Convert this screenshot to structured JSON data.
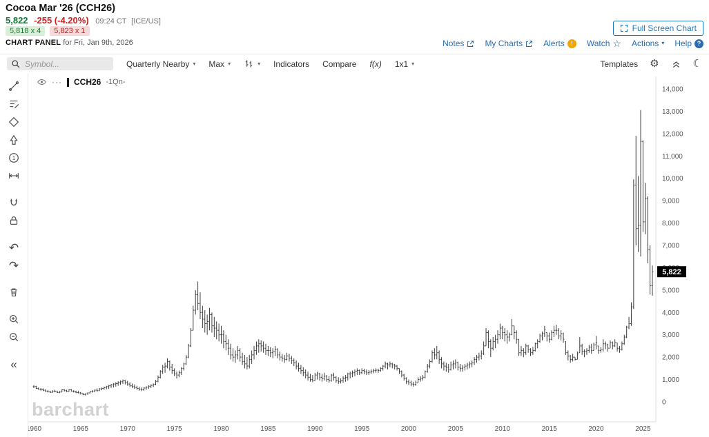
{
  "header": {
    "title": "Cocoa Mar '26 (CCH26)",
    "last_price": "5,822",
    "change": "-255 (-4.20%)",
    "quote_time": "09:24 CT",
    "exchange": "[ICE/US]",
    "bid": "5,818 x 4",
    "ask": "5,823 x 1",
    "panel_label": "CHART PANEL",
    "panel_date": "for Fri, Jan 9th, 2026",
    "fullscreen_label": "Full Screen Chart",
    "links": {
      "notes": "Notes",
      "my_charts": "My Charts",
      "alerts": "Alerts",
      "watch": "Watch",
      "actions": "Actions",
      "help": "Help"
    }
  },
  "toolbar": {
    "symbol_placeholder": "Symbol...",
    "frequency_label": "Quarterly Nearby",
    "range_label": "Max",
    "indicators_label": "Indicators",
    "compare_label": "Compare",
    "fx_label": "f(x)",
    "layout_label": "1x1",
    "templates_label": "Templates"
  },
  "legend": {
    "symbol": "CCH26",
    "frequency": "-1Qn-"
  },
  "watermark": "barchart",
  "icons": {
    "gear": "⚙",
    "moon": "☾",
    "star": "☆",
    "undo": "↶",
    "redo": "↷",
    "collapse": "«",
    "dots": "···",
    "caret_down": "▾",
    "alert_mark": "!",
    "help_mark": "?"
  },
  "colors": {
    "link_blue": "#2a6bb3",
    "button_blue": "#1f7ac2",
    "price_green": "#0b7d34",
    "change_red": "#cc1f1f",
    "bid_bg": "#d9efd9",
    "ask_bg": "#f8d9d9",
    "bar_color": "#3c3c3c",
    "axis_text": "#555555",
    "price_tag_bg": "#000000",
    "price_tag_text": "#ffffff",
    "alert_orange": "#f0a500",
    "watermark_gray": "#d2d2d2"
  },
  "chart_data": {
    "type": "ohlc-bar",
    "title": "Cocoa Mar '26 (CCH26) - Quarterly Nearby - Max range",
    "symbol": "CCH26",
    "frequency": "Quarterly Nearby (1Qn)",
    "range": "Max",
    "start_year": 1960,
    "bars_per_year": 4,
    "ylim": [
      0,
      14000
    ],
    "y_tick_step": 1000,
    "y_ticks": [
      0,
      1000,
      2000,
      3000,
      4000,
      5000,
      6000,
      7000,
      8000,
      9000,
      10000,
      11000,
      12000,
      13000,
      14000
    ],
    "x_tick_years": [
      1960,
      1965,
      1970,
      1975,
      1980,
      1985,
      1990,
      1995,
      2000,
      2005,
      2010,
      2015,
      2020,
      2025
    ],
    "grid": false,
    "legend_position": "top-left",
    "last_price": 5822,
    "last_price_label": "5,822",
    "bars_hlc": [
      [
        750,
        620,
        680
      ],
      [
        720,
        580,
        600
      ],
      [
        640,
        540,
        560
      ],
      [
        620,
        500,
        540
      ],
      [
        600,
        480,
        520
      ],
      [
        560,
        440,
        470
      ],
      [
        520,
        420,
        450
      ],
      [
        500,
        400,
        430
      ],
      [
        520,
        410,
        470
      ],
      [
        540,
        430,
        460
      ],
      [
        500,
        400,
        420
      ],
      [
        480,
        390,
        440
      ],
      [
        560,
        430,
        540
      ],
      [
        580,
        460,
        500
      ],
      [
        540,
        440,
        470
      ],
      [
        560,
        450,
        540
      ],
      [
        580,
        460,
        480
      ],
      [
        520,
        420,
        460
      ],
      [
        500,
        390,
        420
      ],
      [
        480,
        380,
        400
      ],
      [
        440,
        330,
        360
      ],
      [
        400,
        300,
        330
      ],
      [
        380,
        290,
        350
      ],
      [
        420,
        320,
        400
      ],
      [
        480,
        380,
        450
      ],
      [
        520,
        410,
        480
      ],
      [
        560,
        440,
        520
      ],
      [
        600,
        460,
        500
      ],
      [
        620,
        480,
        580
      ],
      [
        640,
        520,
        600
      ],
      [
        680,
        540,
        640
      ],
      [
        720,
        560,
        680
      ],
      [
        760,
        580,
        720
      ],
      [
        800,
        620,
        760
      ],
      [
        840,
        640,
        800
      ],
      [
        880,
        680,
        820
      ],
      [
        920,
        720,
        860
      ],
      [
        960,
        760,
        900
      ],
      [
        1000,
        800,
        940
      ],
      [
        980,
        780,
        850
      ],
      [
        940,
        720,
        800
      ],
      [
        880,
        660,
        720
      ],
      [
        820,
        620,
        680
      ],
      [
        780,
        580,
        640
      ],
      [
        720,
        540,
        600
      ],
      [
        680,
        500,
        560
      ],
      [
        640,
        480,
        540
      ],
      [
        660,
        500,
        620
      ],
      [
        700,
        540,
        660
      ],
      [
        740,
        580,
        700
      ],
      [
        780,
        620,
        740
      ],
      [
        820,
        660,
        780
      ],
      [
        980,
        740,
        920
      ],
      [
        1180,
        880,
        1100
      ],
      [
        1420,
        1050,
        1350
      ],
      [
        1650,
        1250,
        1550
      ],
      [
        1750,
        1300,
        1600
      ],
      [
        1950,
        1500,
        1800
      ],
      [
        1850,
        1400,
        1550
      ],
      [
        1700,
        1250,
        1400
      ],
      [
        1500,
        1150,
        1250
      ],
      [
        1350,
        1050,
        1200
      ],
      [
        1400,
        1100,
        1300
      ],
      [
        1550,
        1200,
        1500
      ],
      [
        1750,
        1400,
        1700
      ],
      [
        2100,
        1650,
        2000
      ],
      [
        2600,
        1950,
        2500
      ],
      [
        3300,
        2450,
        3200
      ],
      [
        4300,
        3200,
        4100
      ],
      [
        5000,
        3900,
        4800
      ],
      [
        5380,
        4100,
        4400
      ],
      [
        4900,
        3700,
        4000
      ],
      [
        4300,
        3300,
        3700
      ],
      [
        4100,
        3100,
        3500
      ],
      [
        3900,
        3000,
        3600
      ],
      [
        4200,
        3200,
        3900
      ],
      [
        4000,
        3100,
        3400
      ],
      [
        3800,
        2900,
        3300
      ],
      [
        3600,
        2800,
        3200
      ],
      [
        3500,
        2700,
        3000
      ],
      [
        3400,
        2600,
        3000
      ],
      [
        3200,
        2400,
        2700
      ],
      [
        3000,
        2300,
        2600
      ],
      [
        2800,
        2100,
        2400
      ],
      [
        2600,
        1900,
        2100
      ],
      [
        2400,
        1800,
        2000
      ],
      [
        2300,
        1750,
        2100
      ],
      [
        2500,
        1900,
        2300
      ],
      [
        2400,
        1800,
        2000
      ],
      [
        2200,
        1650,
        1800
      ],
      [
        2100,
        1500,
        1700
      ],
      [
        2000,
        1450,
        1600
      ],
      [
        2100,
        1500,
        1900
      ],
      [
        2300,
        1700,
        2100
      ],
      [
        2500,
        1900,
        2300
      ],
      [
        2700,
        2100,
        2500
      ],
      [
        2800,
        2200,
        2600
      ],
      [
        2750,
        2250,
        2500
      ],
      [
        2700,
        2200,
        2400
      ],
      [
        2600,
        2100,
        2300
      ],
      [
        2500,
        2050,
        2300
      ],
      [
        2450,
        2000,
        2200
      ],
      [
        2400,
        1950,
        2250
      ],
      [
        2500,
        2050,
        2350
      ],
      [
        2400,
        1950,
        2100
      ],
      [
        2250,
        1850,
        2000
      ],
      [
        2150,
        1800,
        1950
      ],
      [
        2100,
        1750,
        1900
      ],
      [
        2200,
        1850,
        2050
      ],
      [
        2150,
        1800,
        1950
      ],
      [
        2050,
        1700,
        1850
      ],
      [
        1950,
        1600,
        1750
      ],
      [
        1850,
        1450,
        1600
      ],
      [
        1750,
        1350,
        1500
      ],
      [
        1650,
        1250,
        1400
      ],
      [
        1550,
        1150,
        1300
      ],
      [
        1450,
        1050,
        1200
      ],
      [
        1350,
        950,
        1100
      ],
      [
        1250,
        900,
        1000
      ],
      [
        1200,
        880,
        950
      ],
      [
        1300,
        950,
        1200
      ],
      [
        1350,
        1000,
        1250
      ],
      [
        1300,
        950,
        1100
      ],
      [
        1250,
        900,
        1050
      ],
      [
        1300,
        950,
        1150
      ],
      [
        1200,
        900,
        1000
      ],
      [
        1150,
        850,
        950
      ],
      [
        1250,
        900,
        1200
      ],
      [
        1300,
        950,
        1100
      ],
      [
        1150,
        850,
        950
      ],
      [
        1100,
        800,
        900
      ],
      [
        1050,
        820,
        950
      ],
      [
        1150,
        850,
        1050
      ],
      [
        1200,
        900,
        1100
      ],
      [
        1300,
        950,
        1250
      ],
      [
        1350,
        1050,
        1250
      ],
      [
        1400,
        1100,
        1300
      ],
      [
        1450,
        1150,
        1350
      ],
      [
        1500,
        1200,
        1400
      ],
      [
        1450,
        1200,
        1300
      ],
      [
        1500,
        1250,
        1400
      ],
      [
        1480,
        1230,
        1350
      ],
      [
        1450,
        1200,
        1300
      ],
      [
        1420,
        1200,
        1330
      ],
      [
        1450,
        1250,
        1350
      ],
      [
        1480,
        1280,
        1400
      ],
      [
        1500,
        1300,
        1420
      ],
      [
        1480,
        1300,
        1400
      ],
      [
        1550,
        1350,
        1500
      ],
      [
        1650,
        1400,
        1600
      ],
      [
        1800,
        1500,
        1700
      ],
      [
        1750,
        1450,
        1650
      ],
      [
        1800,
        1550,
        1700
      ],
      [
        1750,
        1500,
        1650
      ],
      [
        1700,
        1450,
        1600
      ],
      [
        1650,
        1400,
        1500
      ],
      [
        1500,
        1250,
        1350
      ],
      [
        1400,
        1100,
        1200
      ],
      [
        1250,
        950,
        1050
      ],
      [
        1100,
        800,
        900
      ],
      [
        1000,
        750,
        850
      ],
      [
        950,
        700,
        800
      ],
      [
        900,
        680,
        780
      ],
      [
        950,
        720,
        850
      ],
      [
        1100,
        850,
        1000
      ],
      [
        1150,
        900,
        1050
      ],
      [
        1200,
        950,
        1100
      ],
      [
        1400,
        1050,
        1350
      ],
      [
        1700,
        1300,
        1600
      ],
      [
        1900,
        1500,
        1800
      ],
      [
        2300,
        1750,
        2200
      ],
      [
        2400,
        1900,
        2100
      ],
      [
        2500,
        1900,
        2200
      ],
      [
        2300,
        1700,
        1900
      ],
      [
        2000,
        1500,
        1700
      ],
      [
        1800,
        1400,
        1600
      ],
      [
        1750,
        1350,
        1550
      ],
      [
        1700,
        1300,
        1450
      ],
      [
        1800,
        1400,
        1650
      ],
      [
        1850,
        1450,
        1700
      ],
      [
        1900,
        1500,
        1750
      ],
      [
        1800,
        1400,
        1550
      ],
      [
        1700,
        1350,
        1500
      ],
      [
        1650,
        1350,
        1550
      ],
      [
        1700,
        1400,
        1600
      ],
      [
        1750,
        1450,
        1650
      ],
      [
        1800,
        1500,
        1700
      ],
      [
        1850,
        1550,
        1750
      ],
      [
        2000,
        1650,
        1900
      ],
      [
        2100,
        1750,
        2000
      ],
      [
        2200,
        1850,
        2050
      ],
      [
        2300,
        1900,
        2150
      ],
      [
        2700,
        2100,
        2500
      ],
      [
        3300,
        2500,
        3100
      ],
      [
        3200,
        2400,
        2700
      ],
      [
        2800,
        2000,
        2400
      ],
      [
        2900,
        2300,
        2700
      ],
      [
        3000,
        2400,
        2800
      ],
      [
        3200,
        2600,
        3000
      ],
      [
        3500,
        2800,
        3300
      ],
      [
        3400,
        2800,
        3100
      ],
      [
        3300,
        2700,
        3000
      ],
      [
        3200,
        2600,
        2900
      ],
      [
        3100,
        2700,
        3000
      ],
      [
        3700,
        3000,
        3400
      ],
      [
        3400,
        2800,
        3100
      ],
      [
        3200,
        2600,
        2800
      ],
      [
        2800,
        2050,
        2200
      ],
      [
        2500,
        2050,
        2300
      ],
      [
        2400,
        2000,
        2200
      ],
      [
        2600,
        2100,
        2500
      ],
      [
        2550,
        2200,
        2350
      ],
      [
        2400,
        2050,
        2200
      ],
      [
        2450,
        2100,
        2300
      ],
      [
        2650,
        2250,
        2600
      ],
      [
        2800,
        2400,
        2700
      ],
      [
        3050,
        2650,
        2950
      ],
      [
        3150,
        2750,
        3050
      ],
      [
        3400,
        2900,
        3250
      ],
      [
        3100,
        2700,
        2950
      ],
      [
        3100,
        2650,
        2800
      ],
      [
        3200,
        2750,
        3100
      ],
      [
        3400,
        2900,
        3200
      ],
      [
        3450,
        3000,
        3200
      ],
      [
        3300,
        2800,
        2950
      ],
      [
        3200,
        2750,
        3050
      ],
      [
        3100,
        2650,
        2800
      ],
      [
        2700,
        2100,
        2200
      ],
      [
        2300,
        1850,
        2050
      ],
      [
        2100,
        1750,
        1900
      ],
      [
        2150,
        1800,
        2000
      ],
      [
        2000,
        1850,
        1900
      ],
      [
        2250,
        1900,
        2150
      ],
      [
        2900,
        2200,
        2500
      ],
      [
        2600,
        2100,
        2250
      ],
      [
        2350,
        2000,
        2250
      ],
      [
        2400,
        2100,
        2300
      ],
      [
        2550,
        2200,
        2450
      ],
      [
        2600,
        2150,
        2300
      ],
      [
        2650,
        2300,
        2550
      ],
      [
        2950,
        2350,
        2650
      ],
      [
        2500,
        2150,
        2300
      ],
      [
        2450,
        2200,
        2350
      ],
      [
        2800,
        2250,
        2600
      ],
      [
        2700,
        2350,
        2550
      ],
      [
        2600,
        2250,
        2400
      ],
      [
        2750,
        2400,
        2650
      ],
      [
        2700,
        2350,
        2500
      ],
      [
        2800,
        2450,
        2650
      ],
      [
        2650,
        2250,
        2400
      ],
      [
        2500,
        2200,
        2350
      ],
      [
        2700,
        2300,
        2600
      ],
      [
        3000,
        2550,
        2900
      ],
      [
        3400,
        2850,
        3350
      ],
      [
        3800,
        3250,
        3500
      ],
      [
        4450,
        3400,
        4250
      ],
      [
        9950,
        4150,
        9700
      ],
      [
        11900,
        7000,
        7750
      ],
      [
        10100,
        6700,
        7900
      ],
      [
        13050,
        6500,
        11650
      ],
      [
        11700,
        7600,
        8050
      ],
      [
        9800,
        7500,
        9100
      ],
      [
        9200,
        6200,
        6800
      ],
      [
        7000,
        4800,
        5200
      ],
      [
        6100,
        4750,
        5822
      ]
    ]
  }
}
